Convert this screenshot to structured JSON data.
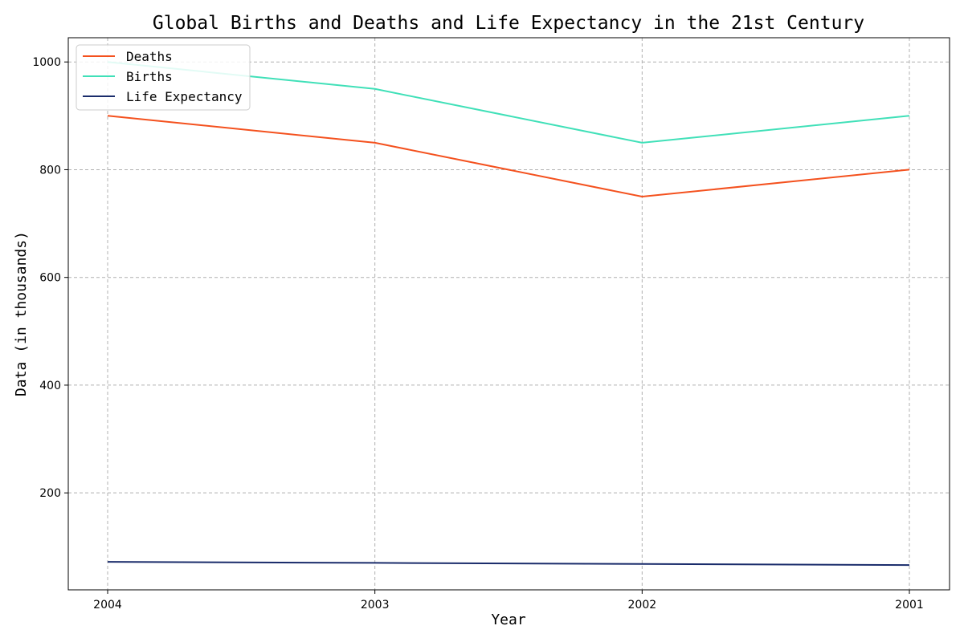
{
  "chart_data": {
    "type": "line",
    "title": "Global Births and Deaths and Life Expectancy in the 21st Century",
    "xlabel": "Year",
    "ylabel": "Data (in thousands)",
    "categories": [
      "2004",
      "2003",
      "2002",
      "2001"
    ],
    "series": [
      {
        "name": "Deaths",
        "color": "#f4511e",
        "values": [
          900,
          850,
          750,
          800
        ]
      },
      {
        "name": "Births",
        "color": "#40e0b8",
        "values": [
          1000,
          950,
          850,
          900
        ]
      },
      {
        "name": "Life Expectancy",
        "color": "#1a2c6b",
        "values": [
          72,
          70,
          68,
          66
        ]
      }
    ],
    "ylim": [
      20,
      1045
    ],
    "yticks": [
      200,
      400,
      600,
      800,
      1000
    ],
    "grid": true,
    "legend_position": "top-left"
  }
}
